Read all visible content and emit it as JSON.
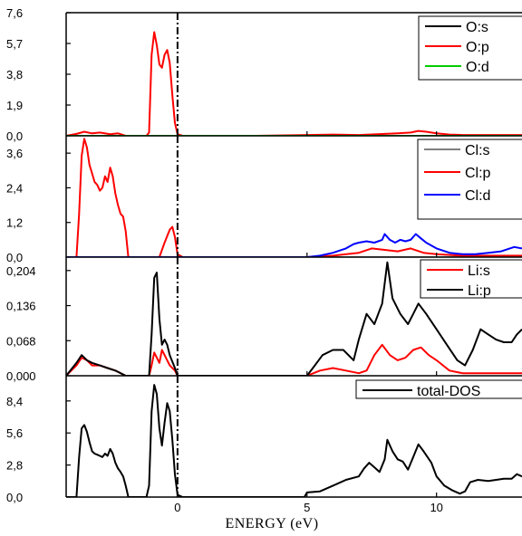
{
  "chart_data": {
    "type": "line",
    "xlabel": "ENERGY (eV)",
    "xlim": [
      -4.3,
      13.3
    ],
    "xticks": [
      0,
      5,
      10
    ],
    "fermi_level": 0,
    "panels": [
      {
        "id": "O",
        "ylim": [
          0,
          7.6
        ],
        "yticks": [
          "0,0",
          "1,9",
          "3,8",
          "5,7",
          "7,6"
        ],
        "ytick_values": [
          0,
          1.9,
          3.8,
          5.7,
          7.6
        ],
        "legend_placement": "top-right",
        "series": [
          {
            "name": "O:s",
            "color": "#000000",
            "x": [
              -4.3,
              13.3
            ],
            "y": [
              0,
              0
            ]
          },
          {
            "name": "O:p",
            "color": "#ff0000",
            "x": [
              -4.3,
              -3.9,
              -3.6,
              -3.3,
              -3.0,
              -2.6,
              -2.3,
              -2.0,
              -1.2,
              -1.1,
              -1.0,
              -0.9,
              -0.8,
              -0.7,
              -0.6,
              -0.5,
              -0.4,
              -0.3,
              -0.2,
              -0.1,
              0.0,
              0.2,
              3.0,
              5.0,
              6.0,
              7.0,
              8.0,
              8.5,
              9.0,
              9.3,
              9.6,
              10.0,
              10.5,
              11.0,
              13.3
            ],
            "y": [
              0,
              0.12,
              0.25,
              0.15,
              0.2,
              0.1,
              0.15,
              0,
              0,
              0.2,
              5.0,
              6.4,
              5.6,
              4.4,
              4.2,
              5.0,
              5.3,
              4.5,
              2.5,
              0.8,
              0.1,
              0,
              0,
              0.05,
              0.08,
              0.05,
              0.12,
              0.15,
              0.2,
              0.3,
              0.25,
              0.15,
              0.08,
              0.05,
              0.05
            ]
          },
          {
            "name": "O:d",
            "color": "#00cc00",
            "x": [
              -4.3,
              13.3
            ],
            "y": [
              0,
              0
            ]
          }
        ]
      },
      {
        "id": "Cl",
        "ylim": [
          0,
          4.2
        ],
        "yticks": [
          "0,0",
          "1,2",
          "2,4",
          "3,6"
        ],
        "ytick_values": [
          0,
          1.2,
          2.4,
          3.6
        ],
        "legend_placement": "top-right",
        "series": [
          {
            "name": "Cl:s",
            "color": "#808080",
            "x": [
              -4.3,
              13.3
            ],
            "y": [
              0,
              0
            ]
          },
          {
            "name": "Cl:p",
            "color": "#ff0000",
            "x": [
              -4.3,
              -3.9,
              -3.8,
              -3.7,
              -3.6,
              -3.5,
              -3.4,
              -3.3,
              -3.2,
              -3.1,
              -3.0,
              -2.9,
              -2.8,
              -2.7,
              -2.6,
              -2.5,
              -2.4,
              -2.3,
              -2.2,
              -2.1,
              -2.0,
              -1.9,
              -0.7,
              -0.5,
              -0.3,
              -0.2,
              -0.1,
              0.0,
              0.2,
              5.0,
              6.0,
              7.0,
              7.5,
              8.0,
              8.5,
              9.0,
              9.5,
              10.0,
              11.0,
              12.0,
              13.3
            ],
            "y": [
              0,
              0,
              1.5,
              3.5,
              4.1,
              3.8,
              3.2,
              2.9,
              2.6,
              2.5,
              2.3,
              2.4,
              2.8,
              2.6,
              3.1,
              2.8,
              2.2,
              1.8,
              1.5,
              1.4,
              0.9,
              0,
              0,
              0.5,
              0.95,
              1.05,
              0.7,
              0.1,
              0,
              0,
              0.05,
              0.15,
              0.3,
              0.25,
              0.2,
              0.3,
              0.15,
              0.1,
              0.05,
              0.05,
              0.05
            ]
          },
          {
            "name": "Cl:d",
            "color": "#0000ff",
            "x": [
              -4.3,
              5.0,
              5.5,
              6.0,
              6.5,
              6.8,
              7.0,
              7.3,
              7.6,
              7.9,
              8.0,
              8.2,
              8.4,
              8.6,
              8.8,
              9.0,
              9.2,
              9.4,
              9.6,
              10.0,
              10.5,
              11.0,
              11.5,
              12.0,
              12.5,
              13.0,
              13.3
            ],
            "y": [
              0,
              0,
              0.05,
              0.15,
              0.3,
              0.45,
              0.5,
              0.55,
              0.5,
              0.6,
              0.8,
              0.6,
              0.5,
              0.6,
              0.55,
              0.6,
              0.8,
              0.65,
              0.5,
              0.3,
              0.15,
              0.1,
              0.1,
              0.15,
              0.2,
              0.35,
              0.3
            ]
          }
        ]
      },
      {
        "id": "Li",
        "ylim": [
          0,
          0.23
        ],
        "yticks": [
          "0,000",
          "0,068",
          "0,136",
          "0,204"
        ],
        "ytick_values": [
          0,
          0.068,
          0.136,
          0.204
        ],
        "legend_placement": "top-right",
        "series": [
          {
            "name": "Li:s",
            "color": "#ff0000",
            "x": [
              -4.3,
              -3.9,
              -3.7,
              -3.5,
              -3.3,
              -3.0,
              -2.7,
              -2.4,
              -2.0,
              -1.1,
              -1.0,
              -0.9,
              -0.7,
              -0.6,
              -0.5,
              -0.3,
              -0.1,
              0.0,
              0.2,
              5.0,
              5.5,
              6.0,
              6.5,
              7.0,
              7.3,
              7.6,
              7.9,
              8.2,
              8.5,
              8.8,
              9.1,
              9.4,
              9.7,
              10.0,
              10.5,
              11.0,
              11.5,
              12.0,
              12.5,
              13.3
            ],
            "y": [
              0,
              0.02,
              0.035,
              0.03,
              0.02,
              0.02,
              0.015,
              0.01,
              0,
              0,
              0.02,
              0.045,
              0.025,
              0.05,
              0.04,
              0.02,
              0.01,
              0,
              0,
              0,
              0.01,
              0.015,
              0.01,
              0.005,
              0.01,
              0.04,
              0.06,
              0.04,
              0.03,
              0.035,
              0.05,
              0.055,
              0.04,
              0.03,
              0.01,
              0.005,
              0.005,
              0.005,
              0.005,
              0.005
            ]
          },
          {
            "name": "Li:p",
            "color": "#000000",
            "x": [
              -4.3,
              -3.9,
              -3.7,
              -3.5,
              -3.3,
              -3.0,
              -2.7,
              -2.4,
              -2.0,
              -1.1,
              -1.0,
              -0.9,
              -0.8,
              -0.7,
              -0.6,
              -0.5,
              -0.4,
              -0.3,
              -0.1,
              0.0,
              0.2,
              5.0,
              5.3,
              5.6,
              6.0,
              6.4,
              6.8,
              7.0,
              7.3,
              7.6,
              7.9,
              8.1,
              8.3,
              8.6,
              8.9,
              9.1,
              9.3,
              9.6,
              10.0,
              10.4,
              10.8,
              11.1,
              11.4,
              11.7,
              12.0,
              12.3,
              12.6,
              12.9,
              13.1,
              13.3
            ],
            "y": [
              0,
              0.025,
              0.04,
              0.03,
              0.025,
              0.02,
              0.015,
              0.01,
              0,
              0,
              0.08,
              0.19,
              0.2,
              0.11,
              0.06,
              0.07,
              0.06,
              0.04,
              0.015,
              0,
              0,
              0,
              0.02,
              0.04,
              0.05,
              0.05,
              0.03,
              0.07,
              0.12,
              0.1,
              0.14,
              0.22,
              0.15,
              0.12,
              0.1,
              0.12,
              0.14,
              0.12,
              0.09,
              0.06,
              0.03,
              0.02,
              0.05,
              0.09,
              0.08,
              0.07,
              0.065,
              0.065,
              0.08,
              0.09
            ]
          }
        ]
      },
      {
        "id": "total",
        "ylim": [
          0,
          10.6
        ],
        "yticks": [
          "0,0",
          "2,8",
          "5,6",
          "8,4"
        ],
        "ytick_values": [
          0,
          2.8,
          5.6,
          8.4
        ],
        "legend_placement": "top-right",
        "series": [
          {
            "name": "total-DOS",
            "color": "#000000",
            "x": [
              -4.3,
              -3.9,
              -3.8,
              -3.7,
              -3.6,
              -3.5,
              -3.4,
              -3.3,
              -3.2,
              -3.1,
              -3.0,
              -2.9,
              -2.8,
              -2.7,
              -2.6,
              -2.5,
              -2.4,
              -2.3,
              -2.2,
              -2.1,
              -2.0,
              -1.9,
              -1.2,
              -1.1,
              -1.0,
              -0.9,
              -0.8,
              -0.7,
              -0.6,
              -0.5,
              -0.4,
              -0.3,
              -0.2,
              -0.1,
              0.0,
              0.2,
              4.9,
              5.0,
              5.5,
              6.0,
              6.5,
              7.0,
              7.2,
              7.4,
              7.6,
              7.8,
              8.0,
              8.1,
              8.3,
              8.5,
              8.7,
              8.9,
              9.1,
              9.3,
              9.5,
              9.8,
              10.0,
              10.3,
              10.6,
              10.9,
              11.1,
              11.3,
              11.6,
              12.0,
              12.3,
              12.6,
              12.9,
              13.1,
              13.3
            ],
            "y": [
              0,
              0,
              3.5,
              6.0,
              6.3,
              5.7,
              4.8,
              4.0,
              3.8,
              3.7,
              3.6,
              3.5,
              3.8,
              3.6,
              4.2,
              3.8,
              3.0,
              2.5,
              2.2,
              1.8,
              1.0,
              0,
              0,
              1.0,
              7.5,
              9.8,
              9.0,
              6.0,
              4.5,
              6.5,
              8.2,
              7.5,
              5.0,
              2.0,
              0.2,
              0,
              0,
              0.4,
              0.5,
              1.0,
              1.5,
              1.8,
              2.5,
              3.0,
              2.6,
              2.2,
              3.3,
              5.0,
              4.0,
              3.3,
              3.1,
              2.4,
              3.5,
              4.6,
              4.0,
              3.0,
              1.8,
              1.0,
              0.6,
              0.3,
              0.5,
              1.3,
              1.5,
              1.4,
              1.5,
              1.6,
              1.6,
              2.0,
              1.8
            ]
          }
        ]
      }
    ]
  }
}
